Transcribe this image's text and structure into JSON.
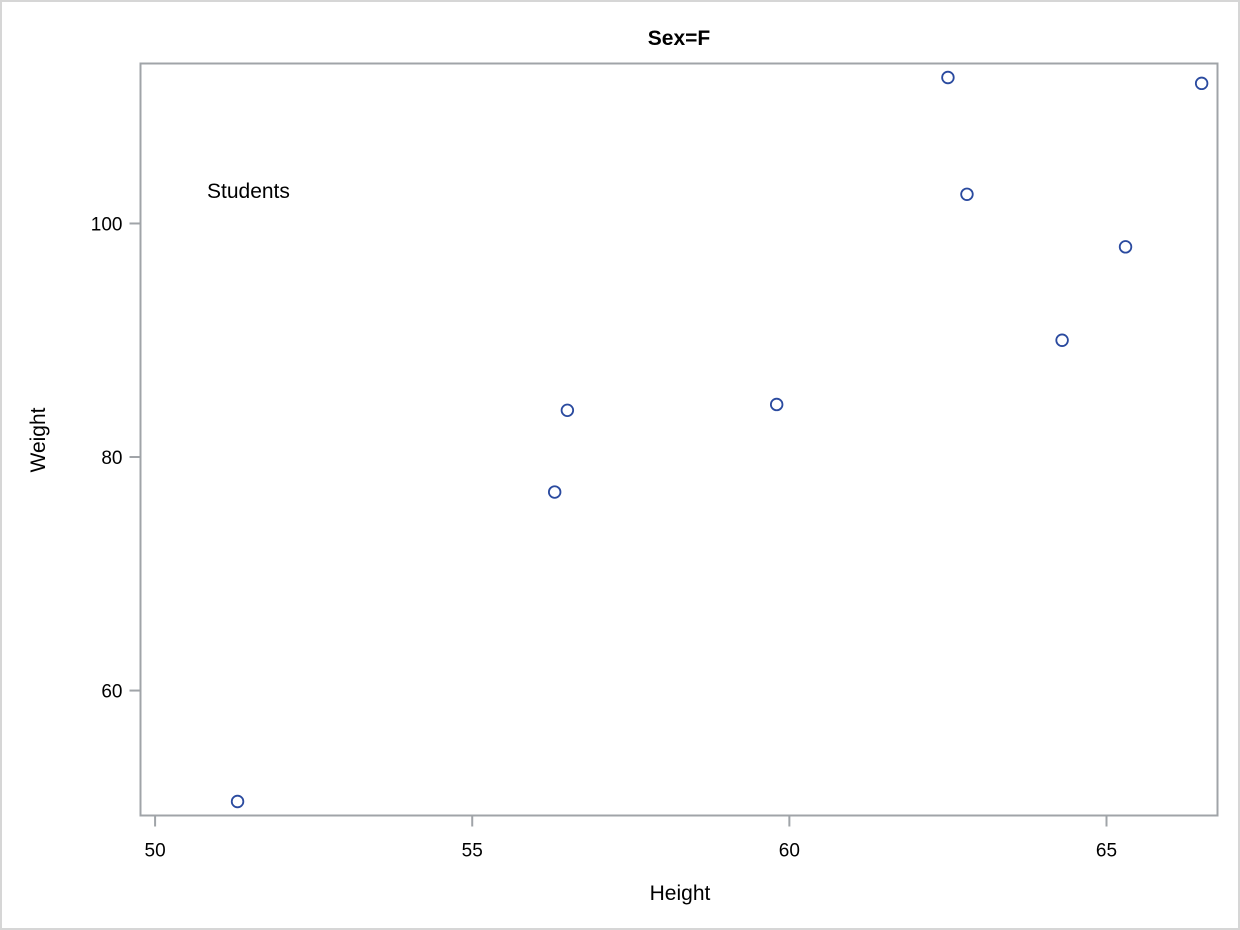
{
  "chart_data": {
    "type": "scatter",
    "title": "Sex=F",
    "xlabel": "Height",
    "ylabel": "Weight",
    "xlim": [
      49.77,
      66.75
    ],
    "ylim": [
      49.3,
      113.7
    ],
    "x_ticks": [
      50,
      55,
      60,
      65
    ],
    "y_ticks": [
      60,
      80,
      100
    ],
    "grid": false,
    "legend": null,
    "annotations": [
      {
        "text": "Students",
        "x": 50.85,
        "y": 102.8
      }
    ],
    "marker": {
      "shape": "open-circle",
      "color": "#2a4a9f"
    },
    "series": [
      {
        "name": "Students",
        "points": [
          {
            "x": 51.3,
            "y": 50.5
          },
          {
            "x": 56.3,
            "y": 77.0
          },
          {
            "x": 56.5,
            "y": 84.0
          },
          {
            "x": 59.8,
            "y": 84.5
          },
          {
            "x": 62.5,
            "y": 112.5
          },
          {
            "x": 62.8,
            "y": 102.5
          },
          {
            "x": 64.3,
            "y": 90.0
          },
          {
            "x": 65.3,
            "y": 98.0
          },
          {
            "x": 66.5,
            "y": 112.0
          }
        ]
      }
    ]
  },
  "colors": {
    "frame": "#a0a4a8",
    "marker": "#2a4a9f",
    "outer_border": "#d6d6d6"
  }
}
